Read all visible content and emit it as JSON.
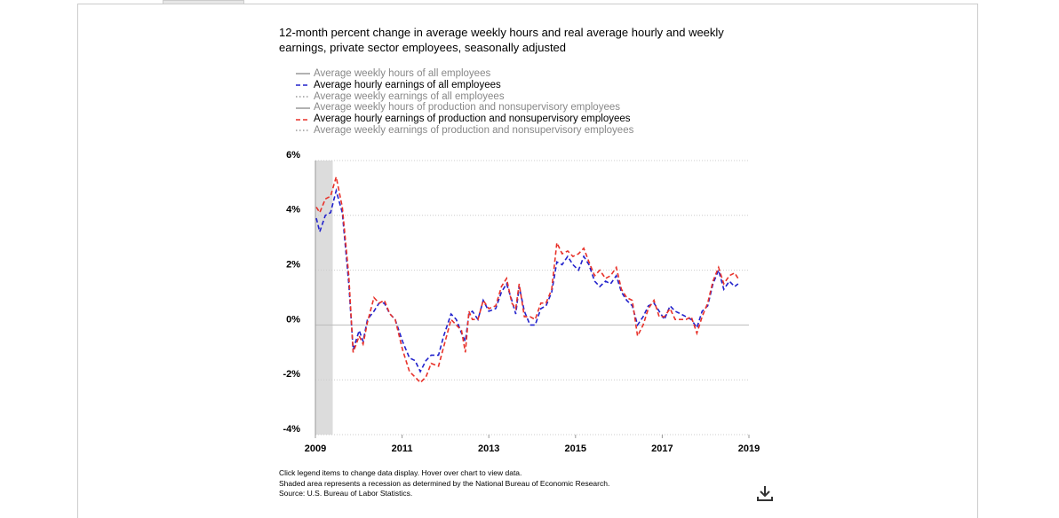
{
  "chart_data": {
    "type": "line",
    "title": "12-month percent change in average weekly hours and real average hourly and weekly earnings, private sector employees, seasonally adjusted",
    "xlim": [
      2009,
      2019
    ],
    "xticks": [
      2009,
      2011,
      2013,
      2015,
      2017,
      2019
    ],
    "ylim": [
      -4,
      6
    ],
    "yticks": [
      {
        "value": -4,
        "label": "-4%"
      },
      {
        "value": -2,
        "label": "-2%"
      },
      {
        "value": 0,
        "label": "0%"
      },
      {
        "value": 2,
        "label": "2%"
      },
      {
        "value": 4,
        "label": "4%"
      },
      {
        "value": 6,
        "label": "6%"
      }
    ],
    "grid": true,
    "recession": [
      2009,
      2009.4
    ],
    "x": [
      2009.02,
      2009.1,
      2009.23,
      2009.35,
      2009.48,
      2009.62,
      2009.77,
      2009.87,
      2010.01,
      2010.1,
      2010.2,
      2010.35,
      2010.47,
      2010.59,
      2010.72,
      2010.84,
      2011.01,
      2011.17,
      2011.3,
      2011.42,
      2011.55,
      2011.67,
      2011.84,
      2011.96,
      2012.13,
      2012.25,
      2012.37,
      2012.46,
      2012.54,
      2012.62,
      2012.75,
      2012.87,
      2013.0,
      2013.16,
      2013.29,
      2013.41,
      2013.53,
      2013.62,
      2013.7,
      2013.82,
      2013.95,
      2014.07,
      2014.2,
      2014.32,
      2014.45,
      2014.57,
      2014.69,
      2014.82,
      2014.94,
      2015.07,
      2015.19,
      2015.31,
      2015.44,
      2015.56,
      2015.69,
      2015.81,
      2015.94,
      2016.06,
      2016.18,
      2016.31,
      2016.43,
      2016.56,
      2016.68,
      2016.81,
      2016.93,
      2017.05,
      2017.18,
      2017.3,
      2017.43,
      2017.55,
      2017.67,
      2017.8,
      2017.92,
      2018.05,
      2018.17,
      2018.3,
      2018.42,
      2018.55,
      2018.67,
      2018.75
    ],
    "series": [
      {
        "name": "Average weekly hours of all employees",
        "color": "#999999",
        "style": "solid",
        "visible": false
      },
      {
        "name": "Average hourly earnings of all employees",
        "color": "#2222cc",
        "style": "dashed",
        "visible": true,
        "values": [
          3.9,
          3.4,
          4.0,
          4.1,
          4.9,
          4.1,
          1.5,
          -0.9,
          -0.2,
          -0.6,
          0.2,
          0.5,
          0.8,
          0.8,
          0.4,
          0.2,
          -0.6,
          -1.2,
          -1.3,
          -1.7,
          -1.3,
          -1.1,
          -1.1,
          -0.4,
          0.4,
          0.2,
          -0.3,
          -0.6,
          0.4,
          0.5,
          0.2,
          0.9,
          0.5,
          0.6,
          1.2,
          1.5,
          0.9,
          0.4,
          1.4,
          0.5,
          0.0,
          0.0,
          0.6,
          0.7,
          1.2,
          2.3,
          2.2,
          2.5,
          2.2,
          2.0,
          2.5,
          2.2,
          1.6,
          1.4,
          1.6,
          1.5,
          1.8,
          1.2,
          0.9,
          0.7,
          0.0,
          0.3,
          0.7,
          0.8,
          0.5,
          0.2,
          0.7,
          0.5,
          0.4,
          0.3,
          0.2,
          -0.1,
          0.5,
          0.7,
          1.5,
          2.0,
          1.3,
          1.6,
          1.4,
          1.5
        ]
      },
      {
        "name": "Average weekly earnings of all employees",
        "color": "#999999",
        "style": "dotted",
        "visible": false
      },
      {
        "name": "Average weekly hours of production and nonsupervisory employees",
        "color": "#999999",
        "style": "solid",
        "visible": false
      },
      {
        "name": "Average hourly earnings of production and nonsupervisory employees",
        "color": "#e8322a",
        "style": "dashed",
        "visible": true,
        "values": [
          4.3,
          4.1,
          4.6,
          4.7,
          5.4,
          4.3,
          1.8,
          -1.0,
          -0.4,
          -0.7,
          0.1,
          1.0,
          0.8,
          0.9,
          0.4,
          0.2,
          -0.9,
          -1.7,
          -1.9,
          -2.1,
          -1.9,
          -1.4,
          -1.5,
          -0.8,
          0.2,
          0.0,
          -0.2,
          -1.0,
          0.5,
          0.2,
          0.2,
          0.9,
          0.6,
          0.7,
          1.4,
          1.7,
          0.8,
          0.6,
          1.5,
          0.3,
          0.3,
          0.2,
          0.8,
          0.8,
          1.3,
          3.0,
          2.6,
          2.7,
          2.5,
          2.6,
          2.8,
          2.3,
          1.8,
          2.0,
          1.7,
          1.8,
          2.1,
          1.3,
          1.0,
          0.9,
          -0.4,
          0.0,
          0.6,
          0.9,
          0.3,
          0.3,
          0.6,
          0.2,
          0.2,
          0.2,
          0.3,
          -0.3,
          0.3,
          0.8,
          1.6,
          2.1,
          1.5,
          1.8,
          1.9,
          1.7
        ]
      },
      {
        "name": "Average weekly earnings of production and nonsupervisory employees",
        "color": "#999999",
        "style": "dotted",
        "visible": false
      }
    ],
    "notes": [
      "Click legend items to change data display. Hover over chart to view data.",
      "Shaded area represents a recession as determined by the National Bureau of Economic Research.",
      "Source: U.S. Bureau of Labor Statistics."
    ]
  }
}
